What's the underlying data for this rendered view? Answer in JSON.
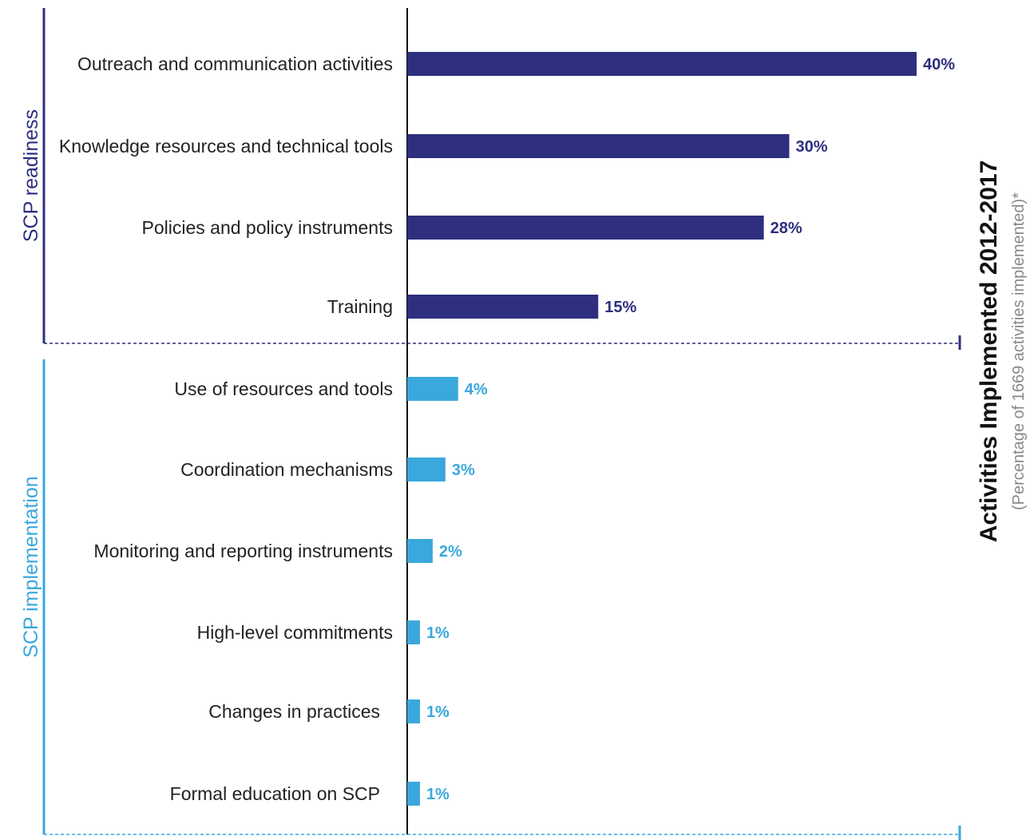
{
  "chart_data": {
    "type": "bar",
    "orientation": "horizontal",
    "title": "Activities Implemented 2012-2017",
    "subtitle": "(Percentage of 1669 activities implemented)*",
    "unit": "%",
    "groups": [
      {
        "name": "SCP readiness",
        "color": "#2e2f7f",
        "categories": [
          "Outreach and communication activities",
          "Knowledge resources and technical tools",
          "Policies and policy instruments",
          "Training"
        ],
        "values": [
          40,
          30,
          28,
          15
        ],
        "labels": [
          "40%",
          "30%",
          "28%",
          "15%"
        ]
      },
      {
        "name": "SCP implementation",
        "color": "#3aa8dc",
        "categories": [
          "Use of resources and tools",
          "Coordination mechanisms",
          "Monitoring and reporting instruments",
          "High-level commitments",
          "Changes in practices",
          "Formal education on SCP"
        ],
        "values": [
          4,
          3,
          2,
          1,
          1,
          1
        ],
        "labels": [
          "4%",
          "3%",
          "2%",
          "1%",
          "1%",
          "1%"
        ]
      }
    ],
    "xlim": [
      0,
      40
    ],
    "grid": false,
    "legend": "none"
  }
}
